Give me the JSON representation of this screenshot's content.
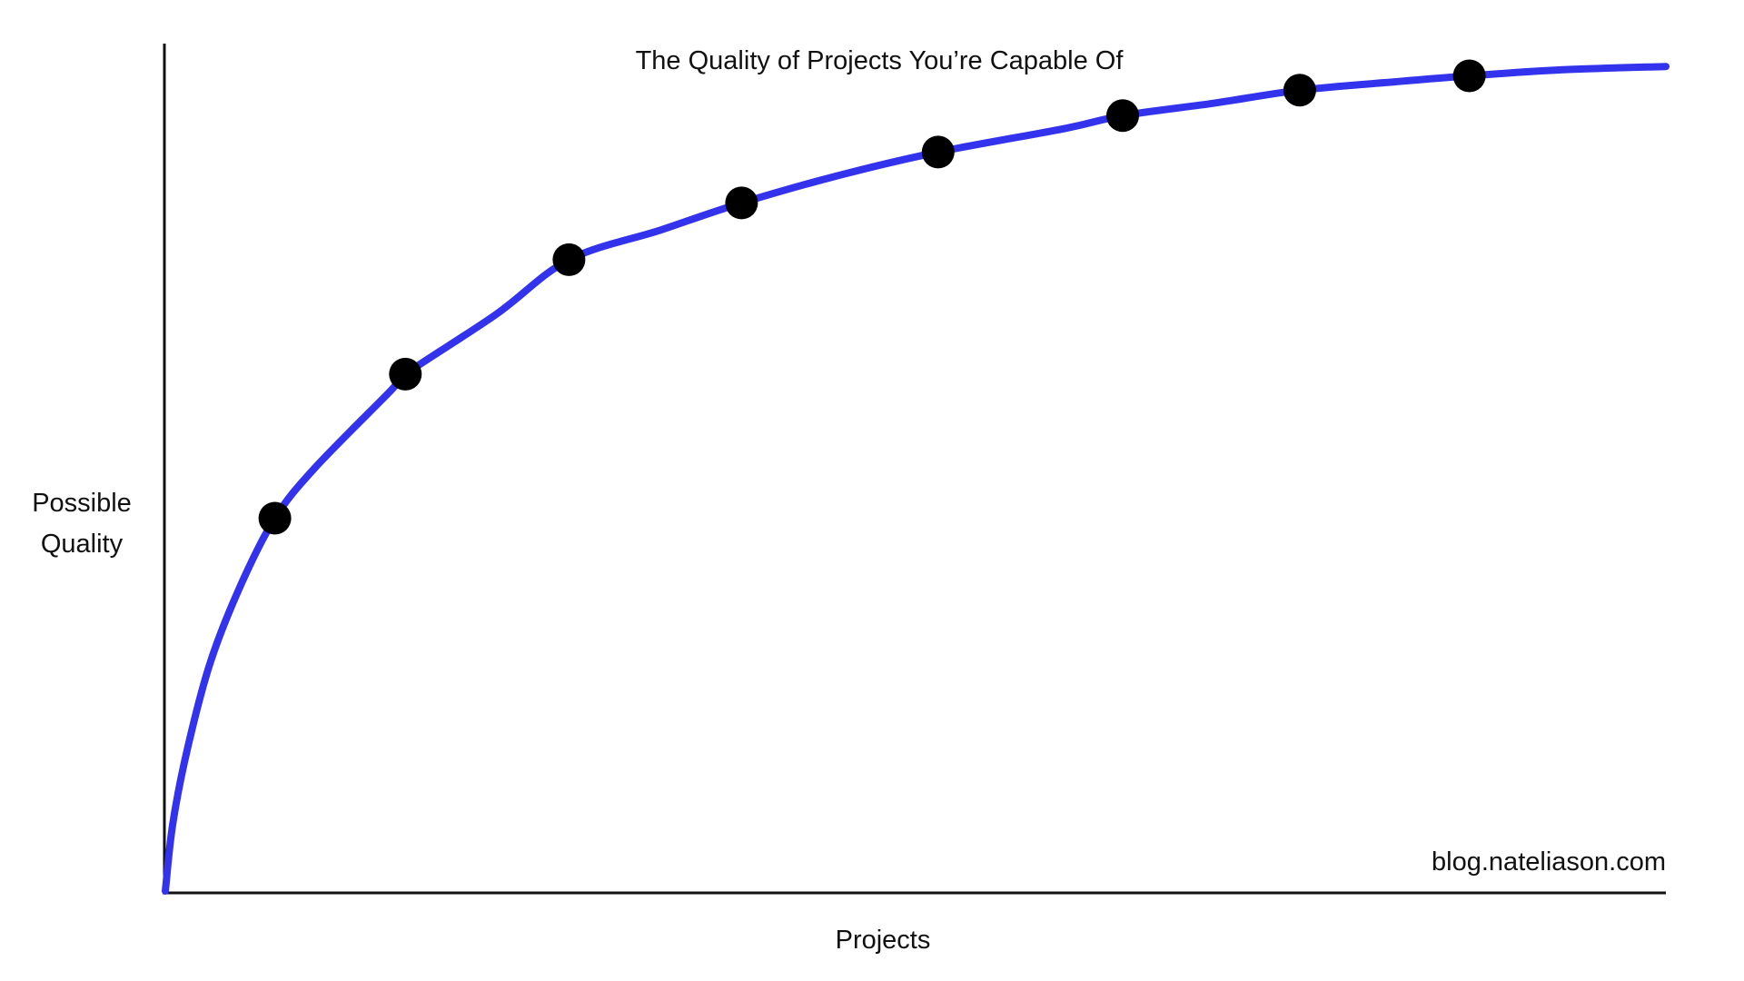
{
  "chart_data": {
    "type": "line",
    "title": "The Quality of Projects You’re Capable Of",
    "xlabel": "Projects",
    "ylabel": [
      "Possible",
      "Quality"
    ],
    "credit": "blog.nateliason.com",
    "grid": false,
    "x_ticks": false,
    "y_ticks": false,
    "xlim": [
      0,
      10
    ],
    "ylim": [
      0,
      1.0
    ],
    "series": [
      {
        "style": "curve",
        "color": "#3333ee",
        "points": [
          {
            "x": 0.0,
            "y": 0.0
          },
          {
            "x": 0.05,
            "y": 0.08
          },
          {
            "x": 0.15,
            "y": 0.17
          },
          {
            "x": 0.3,
            "y": 0.27
          },
          {
            "x": 0.5,
            "y": 0.36
          },
          {
            "x": 0.73,
            "y": 0.44
          },
          {
            "x": 1.0,
            "y": 0.5
          },
          {
            "x": 1.5,
            "y": 0.59
          },
          {
            "x": 1.6,
            "y": 0.61
          },
          {
            "x": 2.2,
            "y": 0.68
          },
          {
            "x": 2.69,
            "y": 0.745
          },
          {
            "x": 3.3,
            "y": 0.78
          },
          {
            "x": 3.84,
            "y": 0.812
          },
          {
            "x": 4.5,
            "y": 0.845
          },
          {
            "x": 5.15,
            "y": 0.872
          },
          {
            "x": 6.0,
            "y": 0.9
          },
          {
            "x": 6.38,
            "y": 0.915
          },
          {
            "x": 7.0,
            "y": 0.93
          },
          {
            "x": 7.56,
            "y": 0.945
          },
          {
            "x": 8.2,
            "y": 0.955
          },
          {
            "x": 8.69,
            "y": 0.962
          },
          {
            "x": 9.3,
            "y": 0.969
          },
          {
            "x": 10.0,
            "y": 0.973
          }
        ]
      },
      {
        "style": "markers",
        "color": "#000000",
        "points": [
          {
            "x": 0.73,
            "y": 0.44
          },
          {
            "x": 1.6,
            "y": 0.61
          },
          {
            "x": 2.69,
            "y": 0.745
          },
          {
            "x": 3.84,
            "y": 0.812
          },
          {
            "x": 5.15,
            "y": 0.872
          },
          {
            "x": 6.38,
            "y": 0.915
          },
          {
            "x": 7.56,
            "y": 0.945
          },
          {
            "x": 8.69,
            "y": 0.962
          }
        ]
      }
    ]
  }
}
